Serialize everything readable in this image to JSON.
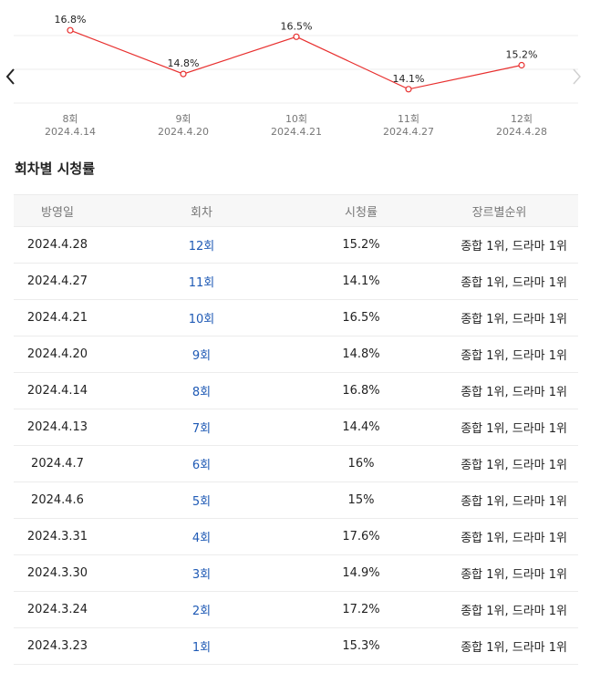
{
  "chart_data": {
    "type": "line",
    "categories": [
      {
        "episode": "8회",
        "date": "2024.4.14"
      },
      {
        "episode": "9회",
        "date": "2024.4.20"
      },
      {
        "episode": "10회",
        "date": "2024.4.21"
      },
      {
        "episode": "11회",
        "date": "2024.4.27"
      },
      {
        "episode": "12회",
        "date": "2024.4.28"
      }
    ],
    "values": [
      16.8,
      14.8,
      16.5,
      14.1,
      15.2
    ],
    "data_labels": [
      "16.8%",
      "14.8%",
      "16.5%",
      "14.1%",
      "15.2%"
    ],
    "unit": "%",
    "ylim": [
      13.3,
      17.6
    ],
    "grid": true,
    "line_color": "#e8302f"
  },
  "nav": {
    "prev_icon": "chevron-left-icon",
    "next_icon": "chevron-right-icon"
  },
  "section": {
    "title": "회차별 시청률"
  },
  "table": {
    "headers": {
      "date": "방영일",
      "episode": "회차",
      "rating": "시청률",
      "rank": "장르별순위"
    },
    "rows": [
      {
        "date": "2024.4.28",
        "episode": "12회",
        "rating": "15.2%",
        "rank": "종합 1위, 드라마 1위"
      },
      {
        "date": "2024.4.27",
        "episode": "11회",
        "rating": "14.1%",
        "rank": "종합 1위, 드라마 1위"
      },
      {
        "date": "2024.4.21",
        "episode": "10회",
        "rating": "16.5%",
        "rank": "종합 1위, 드라마 1위"
      },
      {
        "date": "2024.4.20",
        "episode": "9회",
        "rating": "14.8%",
        "rank": "종합 1위, 드라마 1위"
      },
      {
        "date": "2024.4.14",
        "episode": "8회",
        "rating": "16.8%",
        "rank": "종합 1위, 드라마 1위"
      },
      {
        "date": "2024.4.13",
        "episode": "7회",
        "rating": "14.4%",
        "rank": "종합 1위, 드라마 1위"
      },
      {
        "date": "2024.4.7",
        "episode": "6회",
        "rating": "16%",
        "rank": "종합 1위, 드라마 1위"
      },
      {
        "date": "2024.4.6",
        "episode": "5회",
        "rating": "15%",
        "rank": "종합 1위, 드라마 1위"
      },
      {
        "date": "2024.3.31",
        "episode": "4회",
        "rating": "17.6%",
        "rank": "종합 1위, 드라마 1위"
      },
      {
        "date": "2024.3.30",
        "episode": "3회",
        "rating": "14.9%",
        "rank": "종합 1위, 드라마 1위"
      },
      {
        "date": "2024.3.24",
        "episode": "2회",
        "rating": "17.2%",
        "rank": "종합 1위, 드라마 1위"
      },
      {
        "date": "2024.3.23",
        "episode": "1회",
        "rating": "15.3%",
        "rank": "종합 1위, 드라마 1위"
      }
    ]
  }
}
